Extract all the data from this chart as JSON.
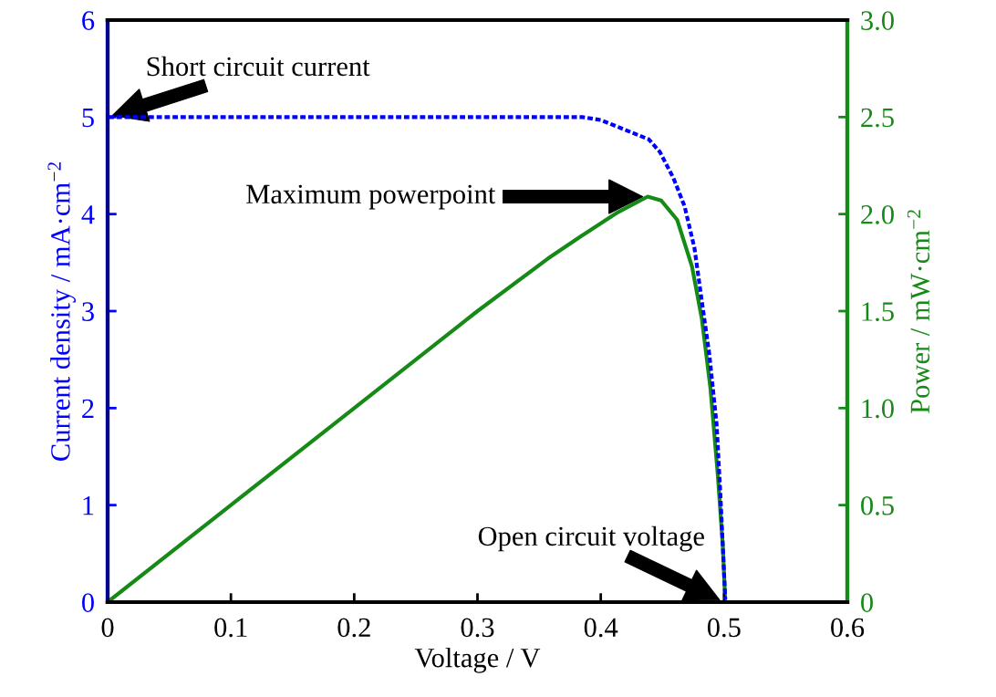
{
  "chart_data": {
    "type": "line",
    "xlabel": "Voltage / V",
    "ylabel": "Current density / mA·cm$^{−2}$",
    "y2label": "Power / mW·cm$^{−2}$",
    "xlim": [
      0,
      0.6
    ],
    "xticks": [
      0,
      0.1,
      0.2,
      0.3,
      0.4,
      0.5,
      0.6
    ],
    "ylim": [
      0,
      6
    ],
    "yticks": [
      0,
      1,
      2,
      3,
      4,
      5,
      6
    ],
    "y2lim": [
      0,
      3
    ],
    "y2ticks": [
      0,
      0.5,
      {
        "value": 1,
        "label": "1.0"
      },
      1.5,
      {
        "value": 2,
        "label": "2.0"
      },
      2.5,
      {
        "value": 3,
        "label": "3.0"
      }
    ],
    "grid": false,
    "legend": false,
    "series": [
      {
        "color": "#0000ff",
        "line_style": "dashed",
        "x": [
          0,
          0.1,
          0.2,
          0.3,
          0.357,
          0.385,
          0.4,
          0.439,
          0.448,
          0.459,
          0.468,
          0.476,
          0.482,
          0.488,
          0.494,
          0.497,
          0.501
        ],
        "values": [
          5.0,
          5.0,
          5.0,
          5.0,
          5.0,
          5.0,
          4.97,
          4.77,
          4.64,
          4.37,
          4.08,
          3.65,
          3.1,
          2.56,
          1.83,
          1.12,
          0.03
        ]
      },
      {
        "color": "#168a16",
        "line_style": "solid",
        "axis": "y2",
        "x": [
          0,
          0.1,
          0.2,
          0.3,
          0.357,
          0.385,
          0.414,
          0.438,
          0.449,
          0.462,
          0.474,
          0.482,
          0.489,
          0.495,
          0.499,
          0.501
        ],
        "values": [
          0,
          0.5,
          1.0,
          1.5,
          1.77,
          1.89,
          2.01,
          2.09,
          2.07,
          1.97,
          1.73,
          1.46,
          1.1,
          0.65,
          0.29,
          0
        ]
      }
    ],
    "annotations": [
      {
        "text": "Short circuit current",
        "x": 0,
        "y": 5
      },
      "Maximum powerpoint",
      {
        "text": "Open circuit voltage",
        "x": 0.5,
        "y": 0
      }
    ]
  }
}
